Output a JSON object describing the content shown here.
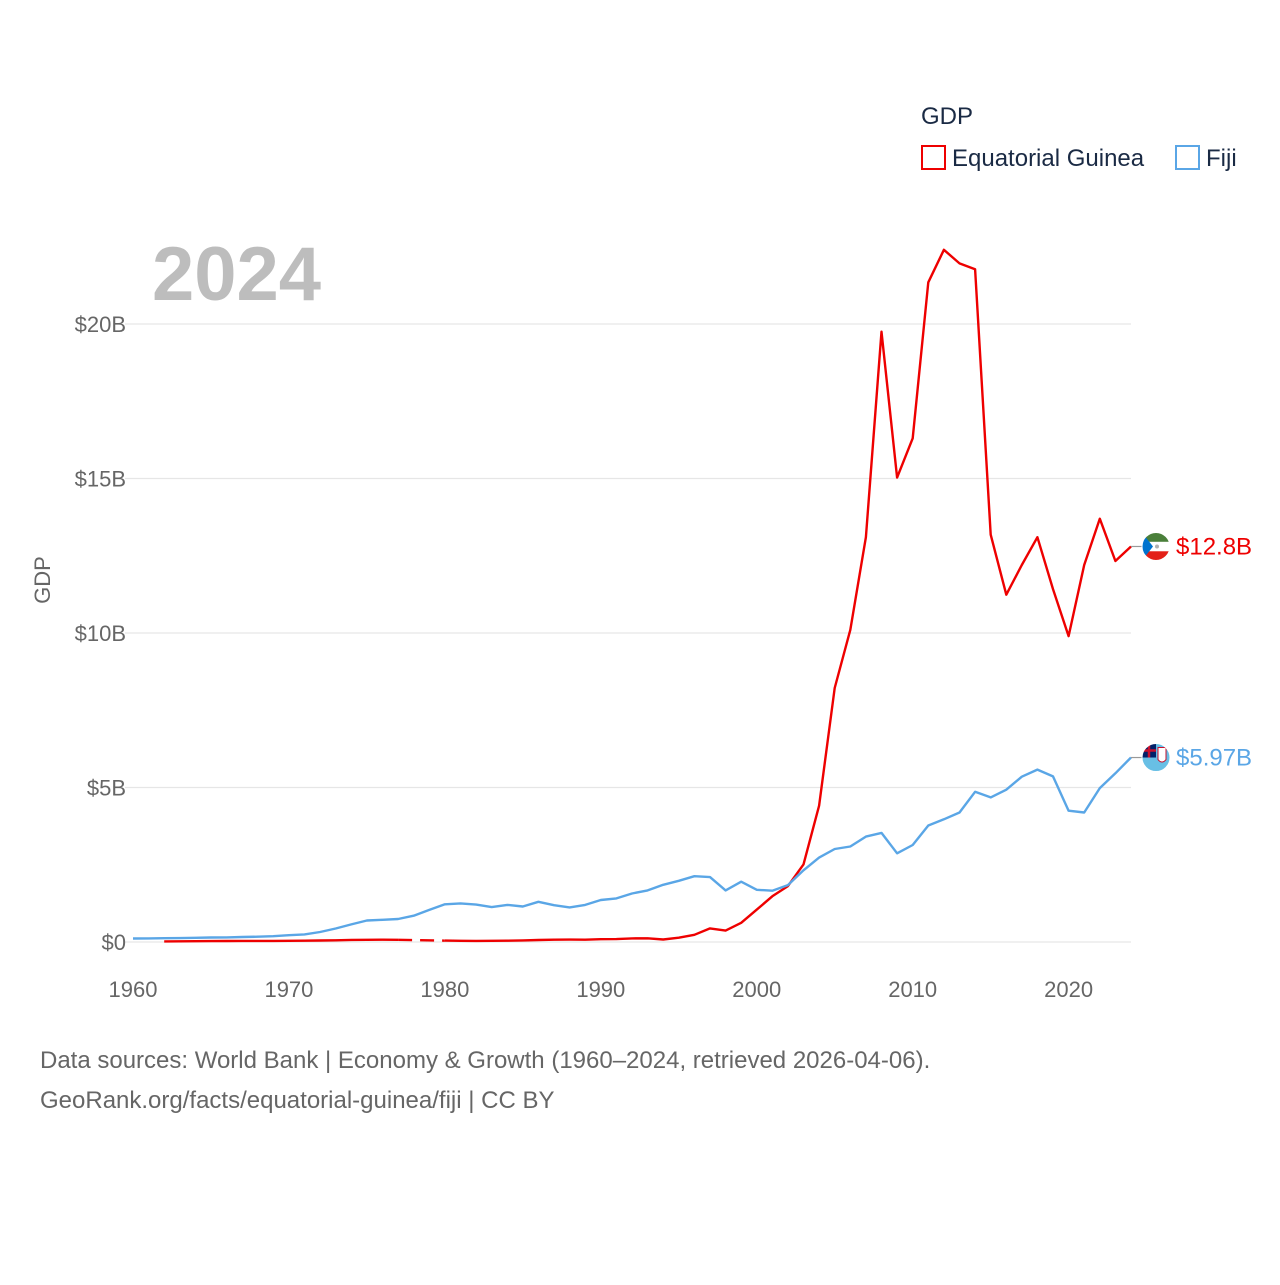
{
  "chart_data": {
    "type": "line",
    "title": "2024",
    "ylabel": "GDP",
    "xlabel": "",
    "xlim": [
      1960,
      2024
    ],
    "ylim": [
      0,
      20000000000
    ],
    "x_ticks": [
      1960,
      1970,
      1980,
      1990,
      2000,
      2010,
      2020
    ],
    "x_tick_labels": [
      "1960",
      "1970",
      "1980",
      "1990",
      "2000",
      "2010",
      "2020"
    ],
    "y_ticks": [
      0,
      5000000000,
      10000000000,
      15000000000,
      20000000000
    ],
    "y_tick_labels": [
      "$0",
      "$5B",
      "$10B",
      "$15B",
      "$20B"
    ],
    "legend": {
      "title": "GDP",
      "position": "top-right"
    },
    "series": [
      {
        "name": "Equatorial Guinea",
        "color": "#ee0000",
        "end_label": "$12.8B",
        "flag_icon": "equatorial-guinea-flag-icon",
        "gap": [
          1977,
          1980
        ],
        "points": [
          [
            1962,
            20000000
          ],
          [
            1963,
            22000000
          ],
          [
            1964,
            26000000
          ],
          [
            1965,
            28000000
          ],
          [
            1966,
            32000000
          ],
          [
            1967,
            34000000
          ],
          [
            1968,
            36000000
          ],
          [
            1969,
            37000000
          ],
          [
            1970,
            40000000
          ],
          [
            1971,
            42000000
          ],
          [
            1972,
            47000000
          ],
          [
            1973,
            55000000
          ],
          [
            1974,
            67000000
          ],
          [
            1975,
            72000000
          ],
          [
            1976,
            74000000
          ],
          [
            1977,
            70000000
          ],
          [
            1980,
            44000000
          ],
          [
            1981,
            38000000
          ],
          [
            1982,
            36000000
          ],
          [
            1983,
            39000000
          ],
          [
            1984,
            43000000
          ],
          [
            1985,
            51000000
          ],
          [
            1986,
            66000000
          ],
          [
            1987,
            75000000
          ],
          [
            1988,
            78000000
          ],
          [
            1989,
            74000000
          ],
          [
            1990,
            90000000
          ],
          [
            1991,
            93000000
          ],
          [
            1992,
            118000000
          ],
          [
            1993,
            121000000
          ],
          [
            1994,
            80000000
          ],
          [
            1995,
            138000000
          ],
          [
            1996,
            232000000
          ],
          [
            1997,
            440000000
          ],
          [
            1998,
            369000000
          ],
          [
            1999,
            620000000
          ],
          [
            2000,
            1050000000
          ],
          [
            2001,
            1480000000
          ],
          [
            2002,
            1810000000
          ],
          [
            2003,
            2510000000
          ],
          [
            2004,
            4410000000
          ],
          [
            2005,
            8220000000
          ],
          [
            2006,
            10100000000
          ],
          [
            2007,
            13100000000
          ],
          [
            2008,
            19750000000
          ],
          [
            2009,
            15030000000
          ],
          [
            2010,
            16300000000
          ],
          [
            2011,
            21350000000
          ],
          [
            2012,
            22400000000
          ],
          [
            2013,
            21960000000
          ],
          [
            2014,
            21770000000
          ],
          [
            2015,
            13180000000
          ],
          [
            2016,
            11240000000
          ],
          [
            2017,
            12200000000
          ],
          [
            2018,
            13100000000
          ],
          [
            2019,
            11420000000
          ],
          [
            2020,
            9900000000
          ],
          [
            2021,
            12200000000
          ],
          [
            2022,
            13700000000
          ],
          [
            2023,
            12330000000
          ],
          [
            2024,
            12800000000
          ]
        ]
      },
      {
        "name": "Fiji",
        "color": "#5aa6e6",
        "end_label": "$5.97B",
        "flag_icon": "fiji-flag-icon",
        "gap": null,
        "points": [
          [
            1960,
            112000000
          ],
          [
            1961,
            116000000
          ],
          [
            1962,
            122000000
          ],
          [
            1963,
            125000000
          ],
          [
            1964,
            137000000
          ],
          [
            1965,
            145000000
          ],
          [
            1966,
            150000000
          ],
          [
            1967,
            163000000
          ],
          [
            1968,
            173000000
          ],
          [
            1969,
            188000000
          ],
          [
            1970,
            219000000
          ],
          [
            1971,
            247000000
          ],
          [
            1972,
            323000000
          ],
          [
            1973,
            438000000
          ],
          [
            1974,
            571000000
          ],
          [
            1975,
            697000000
          ],
          [
            1976,
            717000000
          ],
          [
            1977,
            743000000
          ],
          [
            1978,
            851000000
          ],
          [
            1979,
            1040000000
          ],
          [
            1980,
            1220000000
          ],
          [
            1981,
            1250000000
          ],
          [
            1982,
            1210000000
          ],
          [
            1983,
            1130000000
          ],
          [
            1984,
            1200000000
          ],
          [
            1985,
            1150000000
          ],
          [
            1986,
            1300000000
          ],
          [
            1987,
            1190000000
          ],
          [
            1988,
            1120000000
          ],
          [
            1989,
            1200000000
          ],
          [
            1990,
            1360000000
          ],
          [
            1991,
            1410000000
          ],
          [
            1992,
            1570000000
          ],
          [
            1993,
            1670000000
          ],
          [
            1994,
            1850000000
          ],
          [
            1995,
            1980000000
          ],
          [
            1996,
            2130000000
          ],
          [
            1997,
            2100000000
          ],
          [
            1998,
            1670000000
          ],
          [
            1999,
            1950000000
          ],
          [
            2000,
            1690000000
          ],
          [
            2001,
            1660000000
          ],
          [
            2002,
            1840000000
          ],
          [
            2003,
            2320000000
          ],
          [
            2004,
            2730000000
          ],
          [
            2005,
            3010000000
          ],
          [
            2006,
            3090000000
          ],
          [
            2007,
            3410000000
          ],
          [
            2008,
            3530000000
          ],
          [
            2009,
            2870000000
          ],
          [
            2010,
            3140000000
          ],
          [
            2011,
            3770000000
          ],
          [
            2012,
            3970000000
          ],
          [
            2013,
            4190000000
          ],
          [
            2014,
            4860000000
          ],
          [
            2015,
            4680000000
          ],
          [
            2016,
            4930000000
          ],
          [
            2017,
            5350000000
          ],
          [
            2018,
            5580000000
          ],
          [
            2019,
            5360000000
          ],
          [
            2020,
            4250000000
          ],
          [
            2021,
            4190000000
          ],
          [
            2022,
            4980000000
          ],
          [
            2023,
            5460000000
          ],
          [
            2024,
            5970000000
          ]
        ]
      }
    ],
    "source_lines": [
      "Data sources: World Bank | Economy & Growth (1960–2024, retrieved 2026-04-06).",
      "GeoRank.org/facts/equatorial-guinea/fiji | CC BY"
    ]
  }
}
